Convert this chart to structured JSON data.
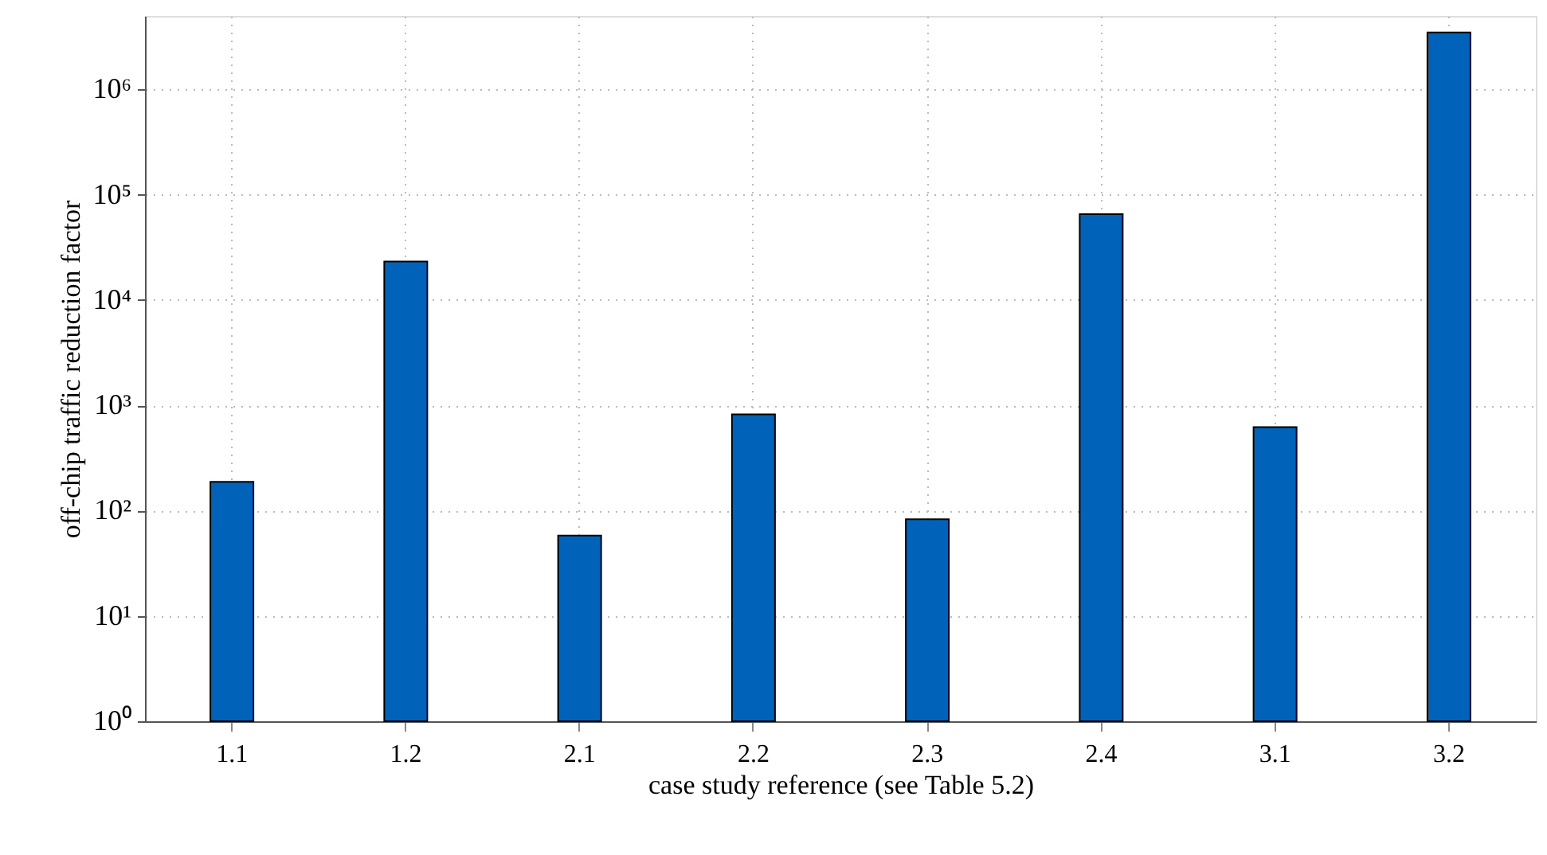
{
  "chart_data": {
    "type": "bar",
    "xlabel": "case study reference (see Table 5.2)",
    "ylabel": "off-chip traffic reduction factor",
    "categories": [
      "1.1",
      "1.2",
      "2.1",
      "2.2",
      "2.3",
      "2.4",
      "3.1",
      "3.2"
    ],
    "values": [
      188,
      23300,
      58,
      820,
      83,
      65500,
      621,
      3490000
    ],
    "color": "#0063ba",
    "log": "y",
    "ylim": [
      1,
      5000000
    ],
    "yticks": [
      {
        "value": 1,
        "label": "10⁰"
      },
      {
        "value": 10,
        "label": "10¹"
      },
      {
        "value": 100,
        "label": "10²"
      },
      {
        "value": 1000,
        "label": "10³"
      },
      {
        "value": 10000,
        "label": "10⁴"
      },
      {
        "value": 100000,
        "label": "10⁵"
      },
      {
        "value": 1000000,
        "label": "10⁶"
      }
    ],
    "grid": true
  }
}
